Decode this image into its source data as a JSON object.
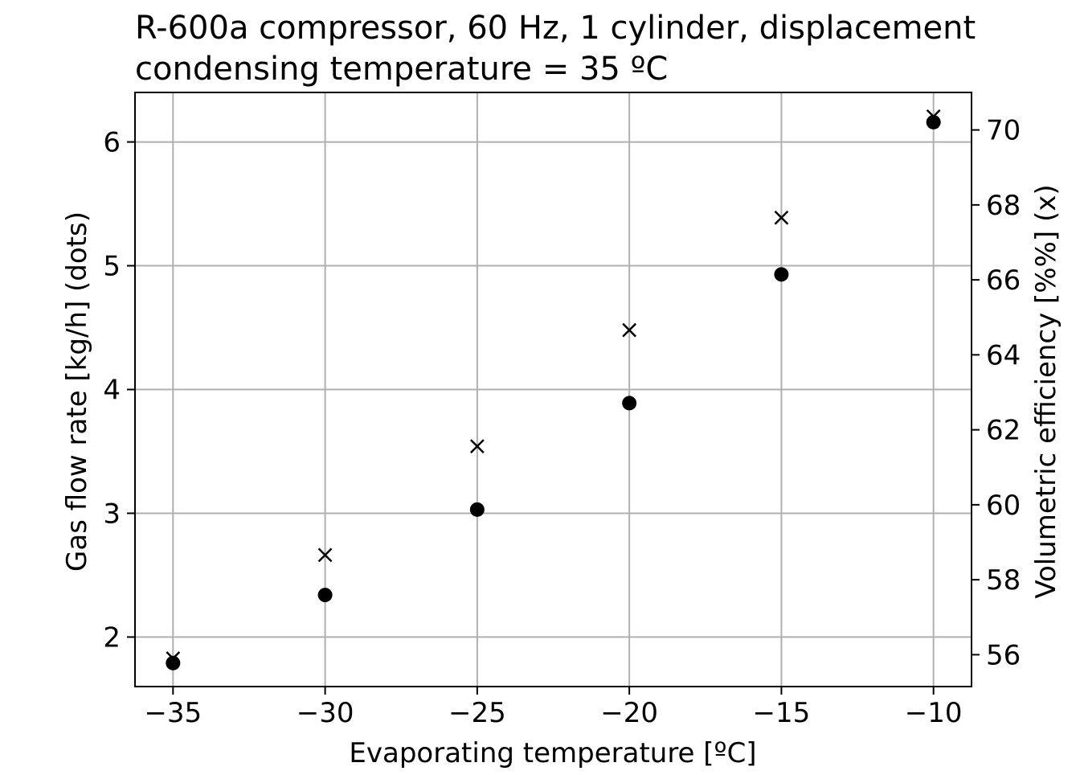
{
  "chart_data": {
    "type": "scatter",
    "title_lines": [
      "R-600a compressor, 60 Hz, 1 cylinder, displacement",
      "condensing temperature = 35 ºC"
    ],
    "xlabel": "Evaporating temperature [ºC]",
    "ylabel_left": "Gas flow rate [kg/h] (dots)",
    "ylabel_right": "Volumetric efficiency [%%] (x)",
    "x": [
      -35,
      -30,
      -25,
      -20,
      -15,
      -10
    ],
    "xlim": [
      -36.25,
      -8.75
    ],
    "xticks": [
      -35,
      -30,
      -25,
      -20,
      -15,
      -10
    ],
    "xtick_labels": [
      "−35",
      "−30",
      "−25",
      "−20",
      "−15",
      "−10"
    ],
    "left_axis": {
      "ylim": [
        1.6,
        6.4
      ],
      "ticks": [
        2,
        3,
        4,
        5,
        6
      ],
      "tick_labels": [
        "2",
        "3",
        "4",
        "5",
        "6"
      ]
    },
    "right_axis": {
      "ylim": [
        55.15,
        71.0
      ],
      "ticks": [
        56,
        58,
        60,
        62,
        64,
        66,
        68,
        70
      ],
      "tick_labels": [
        "56",
        "58",
        "60",
        "62",
        "64",
        "66",
        "68",
        "70"
      ]
    },
    "series": [
      {
        "marker": "dot",
        "axis": "left",
        "values": [
          1.79,
          2.34,
          3.03,
          3.89,
          4.93,
          6.16
        ]
      },
      {
        "marker": "x",
        "axis": "right",
        "values": [
          55.9,
          58.66,
          61.56,
          64.66,
          67.66,
          70.36
        ]
      }
    ],
    "grid": true,
    "colors": {
      "marker": "#000000",
      "grid": "#b0b0b0",
      "axis": "#000000"
    }
  }
}
